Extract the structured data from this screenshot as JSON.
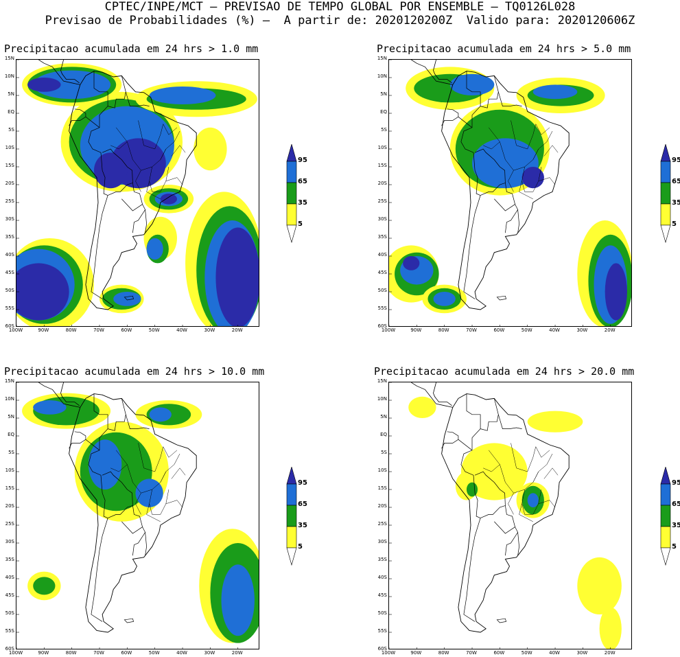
{
  "header": {
    "line1": "CPTEC/INPE/MCT – PREVISAO DE TEMPO GLOBAL POR ENSEMBLE – TQ0126L028",
    "line2": "Previsao de Probabilidades (%) –  A partir de: 2020120200Z  Valido para: 2020120606Z"
  },
  "panels": [
    {
      "title": "Precipitacao acumulada em 24 hrs > 1.0 mm"
    },
    {
      "title": "Precipitacao acumulada em 24 hrs > 5.0 mm"
    },
    {
      "title": "Precipitacao acumulada em 24 hrs > 10.0 mm"
    },
    {
      "title": "Precipitacao acumulada em 24 hrs > 20.0 mm"
    }
  ],
  "axes": {
    "lat_labels": [
      "15N",
      "10N",
      "5N",
      "EQ",
      "5S",
      "10S",
      "15S",
      "20S",
      "25S",
      "30S",
      "35S",
      "40S",
      "45S",
      "50S",
      "55S",
      "60S"
    ],
    "lon_labels": [
      "100W",
      "90W",
      "80W",
      "70W",
      "60W",
      "50W",
      "40W",
      "30W",
      "20W"
    ]
  },
  "colorbar": {
    "labels": [
      "95",
      "65",
      "35",
      "5"
    ],
    "colors": {
      "c5": "#ffff33",
      "c35": "#1a9c1a",
      "c65": "#1f6fd6",
      "c95": "#2b2ba8"
    }
  }
}
